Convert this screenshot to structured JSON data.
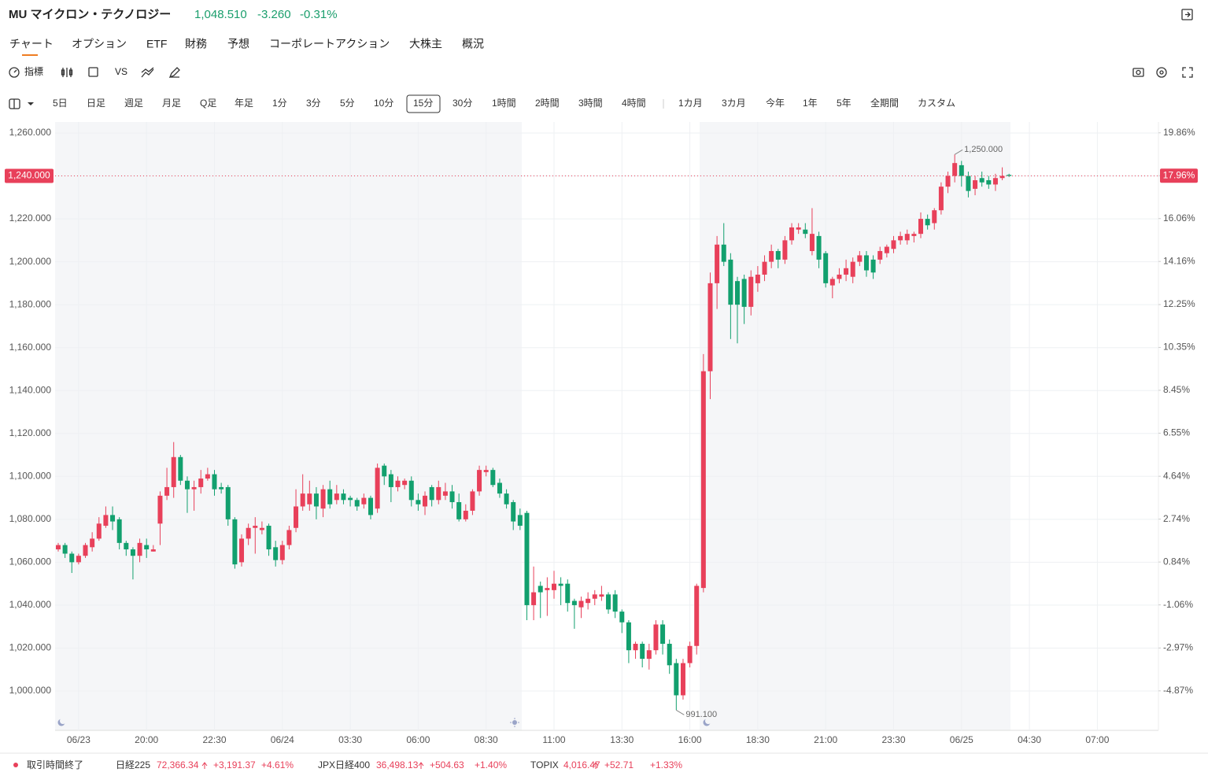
{
  "header": {
    "symbol": "MU マイクロン・テクノロジー",
    "price": "1,048.510",
    "change": "-3.260",
    "change_pct": "-0.31%"
  },
  "tabs": [
    "チャート",
    "オプション",
    "ETF",
    "財務",
    "予想",
    "コーポレートアクション",
    "大株主",
    "概況"
  ],
  "toolbar": {
    "indicators": "指標",
    "vs": "VS"
  },
  "timeframes": [
    "5日",
    "日足",
    "週足",
    "月足",
    "Q足",
    "年足",
    "1分",
    "3分",
    "5分",
    "10分",
    "15分",
    "30分",
    "1時間",
    "2時間",
    "3時間",
    "4時間",
    "1カ月",
    "3カ月",
    "今年",
    "1年",
    "5年",
    "全期間",
    "カスタム"
  ],
  "chart_data": {
    "type": "candlestick",
    "categories": [
      null,
      null,
      null,
      "06/23",
      null,
      null,
      null,
      null,
      null,
      null,
      null,
      null,
      null,
      "20:00",
      null,
      null,
      null,
      null,
      null,
      null,
      null,
      null,
      null,
      "22:30",
      null,
      null,
      null,
      null,
      null,
      null,
      null,
      null,
      null,
      "06/24",
      null,
      null,
      null,
      null,
      null,
      null,
      null,
      null,
      null,
      "03:30",
      null,
      null,
      null,
      null,
      null,
      null,
      null,
      null,
      null,
      "06:00",
      null,
      null,
      null,
      null,
      null,
      null,
      null,
      null,
      null,
      "08:30",
      null,
      null,
      null,
      null,
      null,
      null,
      null,
      null,
      null,
      "11:00",
      null,
      null,
      null,
      null,
      null,
      null,
      null,
      null,
      null,
      "13:30",
      null,
      null,
      null,
      null,
      null,
      null,
      null,
      null,
      null,
      "16:00",
      null,
      null,
      null,
      null,
      null,
      null,
      null,
      null,
      null,
      "18:30",
      null,
      null,
      null,
      null,
      null,
      null,
      null,
      null,
      null,
      "21:00",
      null,
      null,
      null,
      null,
      null,
      null,
      null,
      null,
      null,
      "23:30",
      null,
      null,
      null,
      null,
      null,
      null,
      null,
      null,
      null,
      "06/25",
      null,
      null,
      null,
      null,
      null,
      null,
      null,
      null,
      null,
      "04:30",
      null,
      null,
      null,
      null,
      null,
      null,
      null,
      null,
      null,
      "07:00",
      null,
      null,
      null,
      null,
      null,
      null,
      null,
      null
    ],
    "open": [
      1066,
      1068,
      1064,
      1060,
      1063,
      1067,
      1071,
      1077,
      1082,
      1080,
      1069,
      1066,
      1063,
      1068,
      1065,
      1078,
      1091,
      1095,
      1109,
      1098,
      1094,
      1095,
      1099,
      1101,
      1095,
      1095,
      1080,
      1060,
      1071,
      1076,
      1075,
      1077,
      1067,
      1061,
      1068,
      1076,
      1086,
      1087,
      1092,
      1085,
      1094,
      1089,
      1092,
      1090,
      1089,
      1087,
      1090,
      1085,
      1105,
      1101,
      1095,
      1096,
      1098,
      1089,
      1086,
      1095,
      1089,
      1091,
      1093,
      1088,
      1080,
      1084,
      1093,
      1102,
      1103,
      1097,
      1092,
      1088,
      1082,
      1083,
      1040,
      1049,
      1047,
      1047,
      1050,
      1050,
      1042,
      1039,
      1041,
      1043,
      1044,
      1045,
      1045,
      1037,
      1032,
      1019,
      1022,
      1015,
      1019,
      1031,
      1022,
      1013,
      998,
      1013,
      1021,
      1048,
      1149,
      1190,
      1208,
      1201,
      1191,
      1192,
      1179,
      1190,
      1194,
      1200,
      1205,
      1201,
      1210,
      1215,
      1215,
      1205,
      1212,
      1204,
      1189,
      1192,
      1194,
      1193,
      1200,
      1203,
      1201,
      1201,
      1204,
      1206,
      1210,
      1210,
      1212,
      1213,
      1220,
      1218,
      1224,
      1235,
      1240,
      1245,
      1240,
      1234,
      1239,
      1238,
      1236,
      1239,
      1240.5,
      null,
      null,
      null,
      null,
      null,
      null,
      null,
      null,
      null,
      null,
      null,
      null,
      null,
      null,
      null,
      null,
      null,
      null,
      null,
      null,
      null
    ],
    "high": [
      1069,
      1069,
      1065,
      1064,
      1069,
      1074,
      1081,
      1086,
      1086,
      1081,
      1070,
      1067,
      1071,
      1071,
      1068,
      1093,
      1104,
      1116,
      1110,
      1100,
      1098,
      1103,
      1104,
      1103,
      1097,
      1096,
      1081,
      1073,
      1078,
      1081,
      1079,
      1078,
      1070,
      1070,
      1077,
      1094,
      1101,
      1098,
      1095,
      1096,
      1098,
      1096,
      1094,
      1091,
      1090,
      1092,
      1091,
      1106,
      1106,
      1103,
      1100,
      1099,
      1100,
      1092,
      1093,
      1096,
      1098,
      1097,
      1096,
      1092,
      1087,
      1094,
      1105,
      1105,
      1104,
      1099,
      1094,
      1089,
      1085,
      1084,
      1058,
      1051,
      1053,
      1056,
      1053,
      1052,
      1043,
      1044,
      1046,
      1047,
      1049,
      1046,
      1047,
      1038,
      1033,
      1023,
      1023,
      1022,
      1033,
      1033,
      1024,
      1015,
      1015,
      1023,
      1050,
      1157,
      1195,
      1212,
      1218,
      1204,
      1193,
      1194,
      1196,
      1198,
      1203,
      1208,
      1206,
      1212,
      1218,
      1218,
      1218,
      1225,
      1214,
      1205,
      1193,
      1197,
      1201,
      1202,
      1205,
      1205,
      1203,
      1207,
      1208,
      1212,
      1214,
      1215,
      1214,
      1223,
      1222,
      1225,
      1237,
      1242,
      1250,
      1247,
      1242,
      1240,
      1242,
      1240,
      1241,
      1244,
      1241,
      null,
      null,
      null,
      null,
      null,
      null,
      null,
      null,
      null,
      null,
      null,
      null,
      null,
      null,
      null,
      null,
      null,
      null,
      null,
      null,
      null
    ],
    "low": [
      1065,
      1062,
      1055,
      1059,
      1062,
      1065,
      1070,
      1076,
      1075,
      1066,
      1063,
      1052,
      1060,
      1062,
      1065,
      1068,
      1089,
      1090,
      1096,
      1083,
      1084,
      1092,
      1098,
      1091,
      1092,
      1077,
      1057,
      1058,
      1068,
      1064,
      1073,
      1063,
      1058,
      1059,
      1066,
      1074,
      1084,
      1084,
      1080,
      1081,
      1085,
      1087,
      1087,
      1086,
      1084,
      1085,
      1080,
      1083,
      1096,
      1088,
      1093,
      1094,
      1086,
      1084,
      1082,
      1086,
      1087,
      1089,
      1085,
      1079,
      1079,
      1082,
      1091,
      1100,
      1095,
      1090,
      1085,
      1075,
      1075,
      1033,
      1033,
      1034,
      1035,
      1043,
      1040,
      1037,
      1029,
      1034,
      1038,
      1040,
      1042,
      1036,
      1034,
      1027,
      1013,
      1015,
      1011,
      1010,
      1017,
      1017,
      1008,
      991.1,
      996,
      1011,
      1017,
      1046,
      1136,
      1178,
      1198,
      1164,
      1162,
      1171,
      1175,
      1186,
      1191,
      1197,
      1197,
      1199,
      1208,
      1213,
      1211,
      1203,
      1197,
      1188,
      1183,
      1190,
      1191,
      1190,
      1198,
      1193,
      1192,
      1199,
      1202,
      1204,
      1208,
      1208,
      1209,
      1211,
      1215,
      1215,
      1222,
      1232,
      1237,
      1235,
      1230,
      1231,
      1235,
      1234,
      1233,
      1238,
      1239.5,
      null,
      null,
      null,
      null,
      null,
      null,
      null,
      null,
      null,
      null,
      null,
      null,
      null,
      null,
      null,
      null,
      null,
      null,
      null,
      null,
      null
    ],
    "close": [
      1068,
      1064,
      1060,
      1063,
      1068,
      1071,
      1078,
      1082,
      1079,
      1069,
      1066,
      1063,
      1069,
      1066,
      1066,
      1091,
      1095,
      1109,
      1098,
      1094,
      1095,
      1099,
      1101,
      1094,
      1094,
      1080,
      1059,
      1071,
      1076,
      1077,
      1076,
      1066,
      1061,
      1068,
      1075,
      1086,
      1092,
      1092,
      1086,
      1094,
      1087,
      1092,
      1089,
      1089,
      1086,
      1090,
      1082,
      1104,
      1100,
      1095,
      1098,
      1098,
      1089,
      1087,
      1091,
      1089,
      1095,
      1093,
      1088,
      1080,
      1084,
      1093,
      1103,
      1103,
      1096,
      1092,
      1087,
      1079,
      1077,
      1040,
      1046,
      1046,
      1048,
      1050,
      1049,
      1041,
      1040,
      1042,
      1043,
      1045,
      1045,
      1038,
      1037,
      1032,
      1019,
      1022,
      1015,
      1019,
      1031,
      1022,
      1012,
      998,
      1013,
      1021,
      1049,
      1149,
      1190,
      1208,
      1200,
      1180,
      1180,
      1179,
      1193,
      1194,
      1200,
      1205,
      1201,
      1210,
      1216,
      1216,
      1213,
      1213,
      1201,
      1190,
      1192,
      1194,
      1197,
      1200,
      1203,
      1196,
      1195,
      1205,
      1207,
      1210,
      1212,
      1213,
      1213,
      1220,
      1217,
      1224,
      1235,
      1240,
      1246,
      1240,
      1233,
      1238,
      1237,
      1236,
      1239,
      1240,
      1240,
      null,
      null,
      null,
      null,
      null,
      null,
      null,
      null,
      null,
      null,
      null,
      null,
      null,
      null,
      null,
      null,
      null,
      null,
      null,
      null,
      null
    ],
    "up_color": "#e8405a",
    "down_color": "#12a06e",
    "ylim": [
      981.67,
      1265.13
    ],
    "yticks": [
      {
        "value": 1000,
        "label": "1,000.000"
      },
      {
        "value": 1020,
        "label": "1,020.000"
      },
      {
        "value": 1040,
        "label": "1,040.000"
      },
      {
        "value": 1060,
        "label": "1,060.000"
      },
      {
        "value": 1080,
        "label": "1,080.000"
      },
      {
        "value": 1100,
        "label": "1,100.000"
      },
      {
        "value": 1120,
        "label": "1,120.000"
      },
      {
        "value": 1140,
        "label": "1,140.000"
      },
      {
        "value": 1160,
        "label": "1,160.000"
      },
      {
        "value": 1180,
        "label": "1,180.000"
      },
      {
        "value": 1200,
        "label": "1,200.000"
      },
      {
        "value": 1220,
        "label": "1,220.000"
      },
      {
        "value": 1240,
        "label": "1,240.000"
      },
      {
        "value": 1260,
        "label": "1,260.000"
      }
    ],
    "y2lim": [
      -6.62,
      20.34
    ],
    "y2ticks": [
      {
        "value": -4.87,
        "label": "-4.87%"
      },
      {
        "value": -2.97,
        "label": "-2.97%"
      },
      {
        "value": -1.06,
        "label": "-1.06%"
      },
      {
        "value": 0.84,
        "label": "0.84%"
      },
      {
        "value": 2.74,
        "label": "2.74%"
      },
      {
        "value": 4.64,
        "label": "4.64%"
      },
      {
        "value": 6.55,
        "label": "6.55%"
      },
      {
        "value": 8.45,
        "label": "8.45%"
      },
      {
        "value": 10.35,
        "label": "10.35%"
      },
      {
        "value": 12.25,
        "label": "12.25%"
      },
      {
        "value": 14.16,
        "label": "14.16%"
      },
      {
        "value": 16.06,
        "label": "16.06%"
      },
      {
        "value": 17.96,
        "label": "17.96%"
      },
      {
        "value": 19.86,
        "label": "19.86%"
      }
    ],
    "grid": true,
    "last_price": {
      "value": 1240,
      "label": "1,240.000"
    },
    "last_price_pct": {
      "value": 17.96,
      "label": "17.96%"
    },
    "high_label": {
      "value": 1250,
      "label": "1,250.000"
    },
    "low_label": {
      "value": 991.1,
      "label": "991.100"
    }
  },
  "footer": {
    "status": "取引時間終了",
    "indices": [
      {
        "name": "日経225",
        "value": "72,366.34",
        "change": "+3,191.37",
        "change_pct": "+4.61%"
      },
      {
        "name": "JPX日経400",
        "value": "36,498.13",
        "change": "+504.63",
        "change_pct": "+1.40%"
      },
      {
        "name": "TOPIX",
        "value": "4,016.47",
        "change": "+52.71",
        "change_pct": "+1.33%"
      }
    ]
  }
}
